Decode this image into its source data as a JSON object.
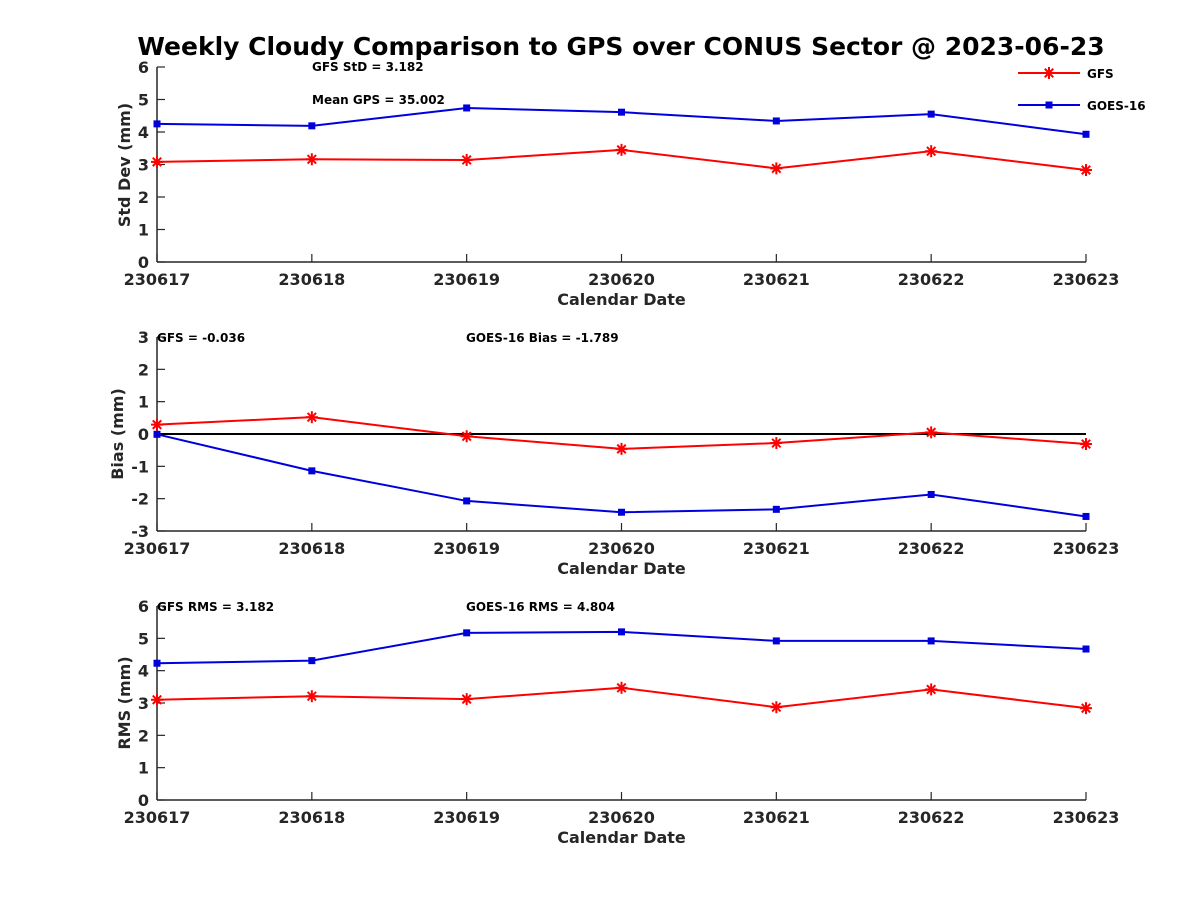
{
  "figure": {
    "title": "Weekly Cloudy Comparison to GPS over CONUS Sector @ 2023-06-23"
  },
  "legend": {
    "placement": "top-right",
    "entries": [
      {
        "name": "GFS",
        "color": "#ff0000",
        "marker": "asterisk"
      },
      {
        "name": "GOES-16",
        "color": "#0000dd",
        "marker": "square"
      }
    ]
  },
  "chart_data": [
    {
      "type": "line",
      "title": "",
      "xlabel": "Calendar Date",
      "ylabel": "Std Dev (mm)",
      "categories": [
        "230617",
        "230618",
        "230619",
        "230620",
        "230621",
        "230622",
        "230623"
      ],
      "ylim": [
        0,
        6
      ],
      "yticks": [
        "0",
        "1",
        "2",
        "3",
        "4",
        "5",
        "6"
      ],
      "zero_line": false,
      "annotations": [
        "GFS StD = 3.182",
        "Mean GPS = 35.002"
      ],
      "series": [
        {
          "name": "GFS",
          "color": "#ff0000",
          "marker": "asterisk",
          "values": [
            3.08,
            3.16,
            3.14,
            3.45,
            2.88,
            3.41,
            2.83
          ]
        },
        {
          "name": "GOES-16",
          "color": "#0000dd",
          "marker": "square",
          "values": [
            4.25,
            4.19,
            4.74,
            4.61,
            4.34,
            4.55,
            3.93
          ]
        }
      ]
    },
    {
      "type": "line",
      "title": "",
      "xlabel": "Calendar Date",
      "ylabel": "Bias (mm)",
      "categories": [
        "230617",
        "230618",
        "230619",
        "230620",
        "230621",
        "230622",
        "230623"
      ],
      "ylim": [
        -3,
        3
      ],
      "yticks": [
        "-3",
        "-2",
        "-1",
        "0",
        "1",
        "2",
        "3"
      ],
      "zero_line": true,
      "annotations": [
        "GFS = -0.036",
        "GOES-16 Bias  = -1.789"
      ],
      "series": [
        {
          "name": "GFS",
          "color": "#ff0000",
          "marker": "asterisk",
          "values": [
            0.29,
            0.52,
            -0.07,
            -0.46,
            -0.28,
            0.05,
            -0.31
          ]
        },
        {
          "name": "GOES-16",
          "color": "#0000dd",
          "marker": "square",
          "values": [
            -0.01,
            -1.14,
            -2.07,
            -2.42,
            -2.33,
            -1.87,
            -2.55
          ]
        }
      ]
    },
    {
      "type": "line",
      "title": "",
      "xlabel": "Calendar Date",
      "ylabel": "RMS (mm)",
      "categories": [
        "230617",
        "230618",
        "230619",
        "230620",
        "230621",
        "230622",
        "230623"
      ],
      "ylim": [
        0,
        6
      ],
      "yticks": [
        "0",
        "1",
        "2",
        "3",
        "4",
        "5",
        "6"
      ],
      "zero_line": false,
      "annotations": [
        "GFS RMS = 3.182",
        "GOES-16 RMS = 4.804"
      ],
      "series": [
        {
          "name": "GFS",
          "color": "#ff0000",
          "marker": "asterisk",
          "values": [
            3.1,
            3.21,
            3.12,
            3.47,
            2.87,
            3.42,
            2.84
          ]
        },
        {
          "name": "GOES-16",
          "color": "#0000dd",
          "marker": "square",
          "values": [
            4.23,
            4.31,
            5.17,
            5.2,
            4.92,
            4.92,
            4.67
          ]
        }
      ]
    }
  ]
}
